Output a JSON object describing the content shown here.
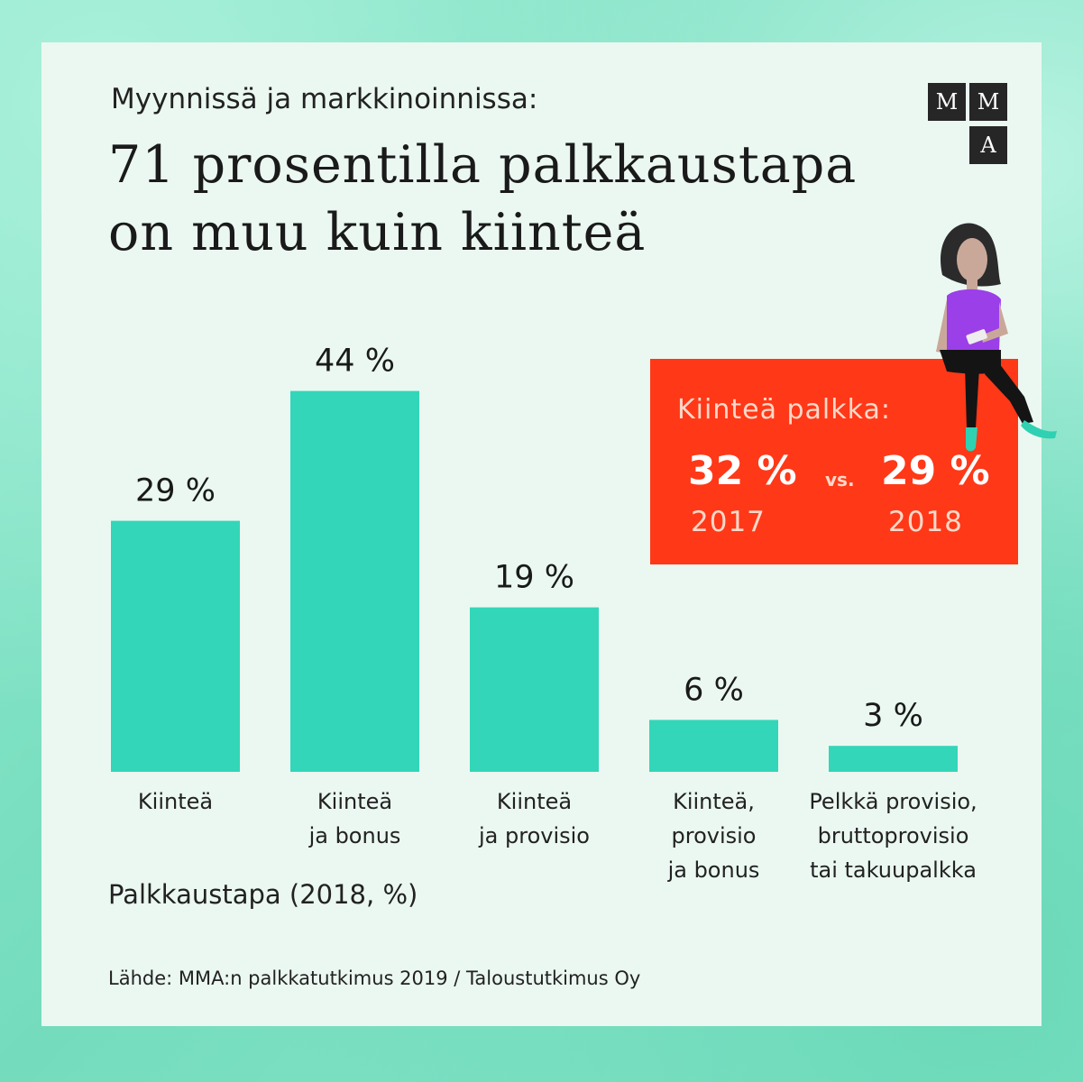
{
  "header": {
    "subtitle": "Myynnissä ja markkinoinnissa:",
    "title_line1": "71 prosentilla palkkaustapa",
    "title_line2": "on muu kuin kiinteä"
  },
  "logo": {
    "letters": [
      "M",
      "M",
      "A"
    ]
  },
  "chart_data": {
    "type": "bar",
    "categories": [
      [
        "Kiinteä"
      ],
      [
        "Kiinteä",
        "ja bonus"
      ],
      [
        "Kiinteä",
        "ja provisio"
      ],
      [
        "Kiinteä,",
        "provisio",
        "ja bonus"
      ],
      [
        "Pelkkä provisio,",
        "bruttoprovisio",
        "tai takuupalkka"
      ]
    ],
    "values": [
      29,
      44,
      19,
      6,
      3
    ],
    "value_labels": [
      "29 %",
      "44 %",
      "19 %",
      "6 %",
      "3 %"
    ],
    "xlabel": "Palkkaustapa (2018, %)",
    "bar_color": "#33d6b8"
  },
  "callout": {
    "title": "Kiinteä palkka:",
    "value_2017": "32 %",
    "vs": "vs.",
    "value_2018": "29 %",
    "year_2017": "2017",
    "year_2018": "2018",
    "background_color": "#ff3818"
  },
  "source": "Lähde: MMA:n palkkatutkimus 2019 / Taloustutkimus Oy",
  "colors": {
    "accent": "#33d6b8",
    "card": "#ebf8f1",
    "callout": "#ff3818"
  }
}
